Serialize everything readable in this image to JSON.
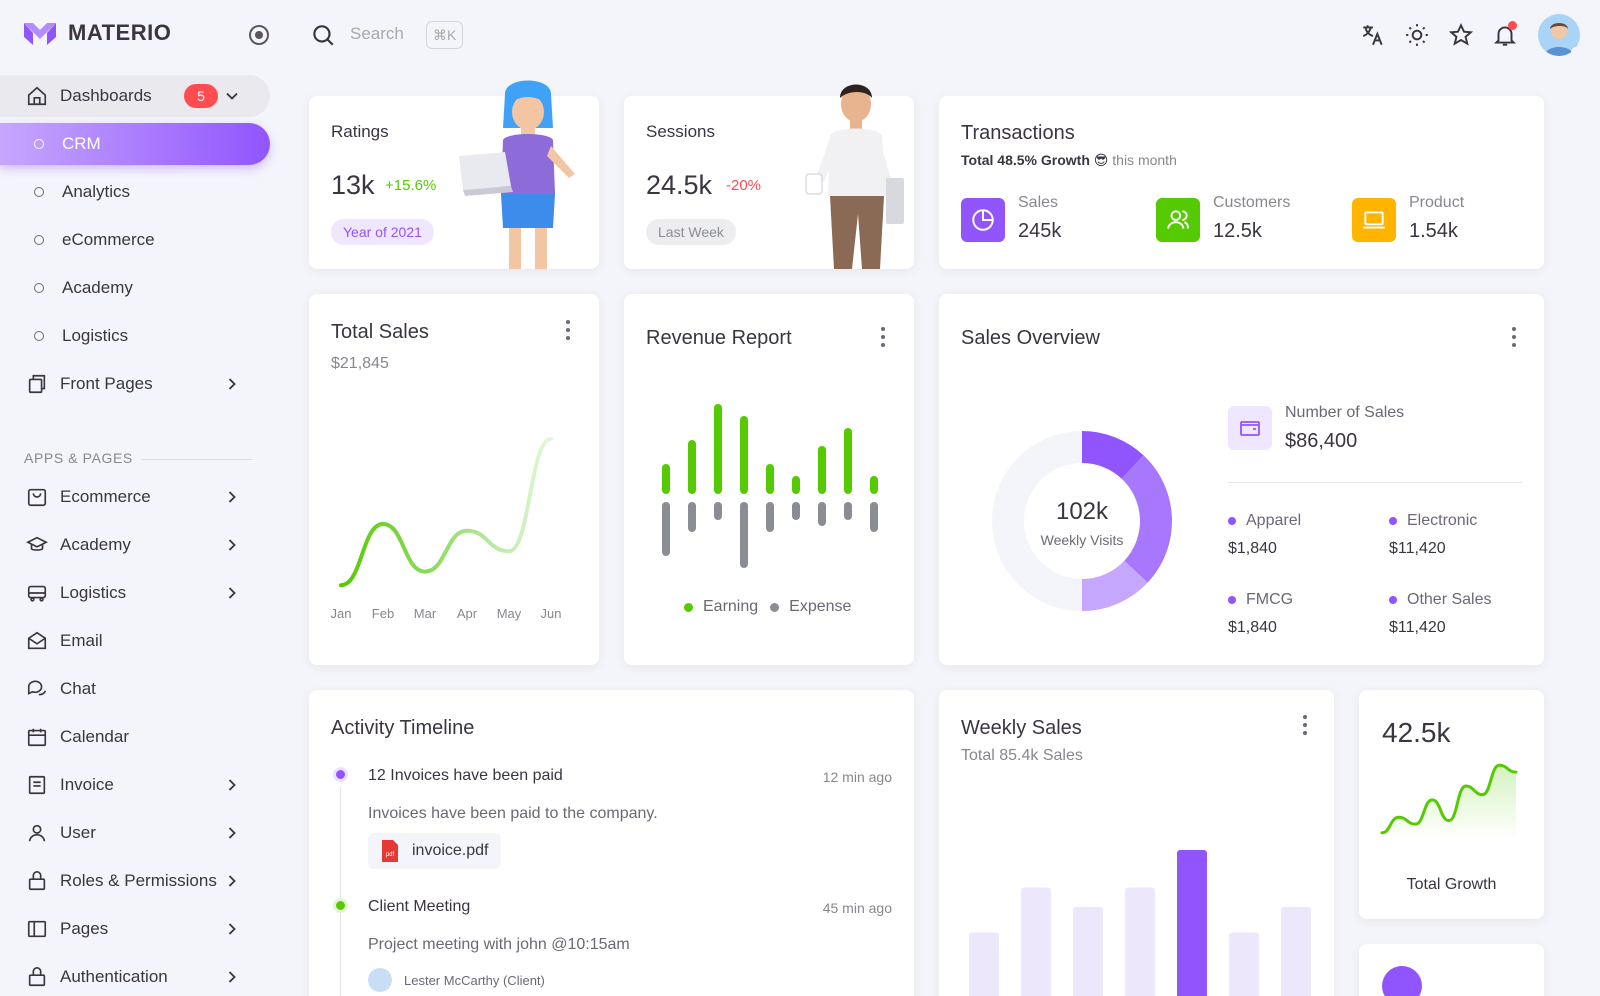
{
  "brand": {
    "name": "MATERIO"
  },
  "search": {
    "placeholder": "Search",
    "shortcut": "⌘K"
  },
  "sidebar": {
    "dashboards_label": "Dashboards",
    "dashboards_badge": "5",
    "sub_items": [
      "CRM",
      "Analytics",
      "eCommerce",
      "Academy",
      "Logistics"
    ],
    "front_pages": "Front Pages",
    "section_label": "APPS & PAGES",
    "apps": [
      "Ecommerce",
      "Academy",
      "Logistics",
      "Email",
      "Chat",
      "Calendar",
      "Invoice",
      "User",
      "Roles & Permissions",
      "Pages",
      "Authentication"
    ]
  },
  "ratings": {
    "title": "Ratings",
    "value": "13k",
    "change": "+15.6%",
    "chip": "Year of 2021"
  },
  "sessions": {
    "title": "Sessions",
    "value": "24.5k",
    "change": "-20%",
    "chip": "Last Week"
  },
  "transactions": {
    "title": "Transactions",
    "subtitle_bold": "Total 48.5% Growth",
    "subtitle_emoji": "😎",
    "subtitle_rest": "this month",
    "stats": [
      {
        "label": "Sales",
        "value": "245k",
        "color": "#9155fd",
        "icon": "pie-chart-icon"
      },
      {
        "label": "Customers",
        "value": "12.5k",
        "color": "#56ca00",
        "icon": "users-icon"
      },
      {
        "label": "Product",
        "value": "1.54k",
        "color": "#ffb400",
        "icon": "laptop-icon"
      }
    ]
  },
  "total_sales": {
    "title": "Total Sales",
    "amount": "$21,845",
    "chart_data": {
      "type": "line",
      "categories": [
        "Jan",
        "Feb",
        "Mar",
        "Apr",
        "May",
        "Jun"
      ],
      "values": [
        2,
        20,
        6,
        18,
        12,
        45
      ],
      "color": "#56ca00"
    }
  },
  "revenue_report": {
    "title": "Revenue Report",
    "chart_data": {
      "type": "bar",
      "series": [
        {
          "name": "Earning",
          "values": [
            2.5,
            4.5,
            7.5,
            6.5,
            2.5,
            1.5,
            4,
            5.5,
            1.5
          ],
          "color": "#56ca00"
        },
        {
          "name": "Expense",
          "values": [
            -4.5,
            -2.5,
            -1.5,
            -5.5,
            -2.5,
            -1.5,
            -2,
            -1.5,
            -2.5
          ],
          "color": "#8a8d93"
        }
      ]
    }
  },
  "sales_overview": {
    "title": "Sales Overview",
    "center_value": "102k",
    "center_label": "Weekly Visits",
    "number_label": "Number of Sales",
    "number_value": "$86,400",
    "chart_data": {
      "type": "pie",
      "values": [
        12,
        25,
        13,
        50
      ],
      "colors": [
        "#9155fd",
        "#a778fd",
        "#c6a7fe",
        "#f4f5fa"
      ]
    },
    "items": [
      {
        "label": "Apparel",
        "value": "$1,840"
      },
      {
        "label": "Electronic",
        "value": "$11,420"
      },
      {
        "label": "FMCG",
        "value": "$1,840"
      },
      {
        "label": "Other Sales",
        "value": "$11,420"
      }
    ]
  },
  "activity": {
    "title": "Activity Timeline",
    "events": [
      {
        "title": "12 Invoices have been paid",
        "time": "12 min ago",
        "desc": "Invoices have been paid to the company.",
        "attachment": "invoice.pdf",
        "color": "#9155fd"
      },
      {
        "title": "Client Meeting",
        "time": "45 min ago",
        "desc": "Project meeting with john @10:15am",
        "person": "Lester McCarthy (Client)",
        "color": "#56ca00"
      }
    ]
  },
  "weekly_sales": {
    "title": "Weekly Sales",
    "subtitle": "Total 85.4k Sales",
    "chart_data": {
      "type": "bar",
      "values": [
        45,
        75,
        62,
        75,
        100,
        45,
        62
      ],
      "highlight_index": 4,
      "color": "#9155fd"
    }
  },
  "total_growth": {
    "value": "42.5k",
    "label": "Total Growth",
    "chart_data": {
      "type": "line",
      "values": [
        3,
        12,
        8,
        22,
        10,
        30,
        25,
        42,
        38
      ],
      "color": "#56ca00"
    }
  }
}
